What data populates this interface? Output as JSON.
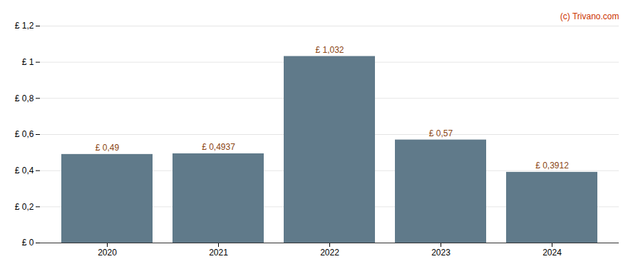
{
  "chart_data": {
    "type": "bar",
    "categories": [
      "2020",
      "2021",
      "2022",
      "2023",
      "2024"
    ],
    "values": [
      0.49,
      0.4937,
      1.032,
      0.57,
      0.3912
    ],
    "value_labels": [
      "£ 0,49",
      "£ 0,4937",
      "£ 1,032",
      "£ 0,57",
      "£ 0,3912"
    ],
    "data_labels": true,
    "color": "#607a8a",
    "ylim": [
      0,
      1.2
    ],
    "yticks": [
      {
        "value": 0,
        "label": "£ 0"
      },
      {
        "value": 0.2,
        "label": "£ 0,2"
      },
      {
        "value": 0.4,
        "label": "£ 0,4"
      },
      {
        "value": 0.6,
        "label": "£ 0,6"
      },
      {
        "value": 0.8,
        "label": "£ 0,8"
      },
      {
        "value": 1.0,
        "label": "£ 1"
      },
      {
        "value": 1.2,
        "label": "£ 1,2"
      }
    ],
    "grid": true,
    "annotation": "(c) Trivano.com"
  }
}
